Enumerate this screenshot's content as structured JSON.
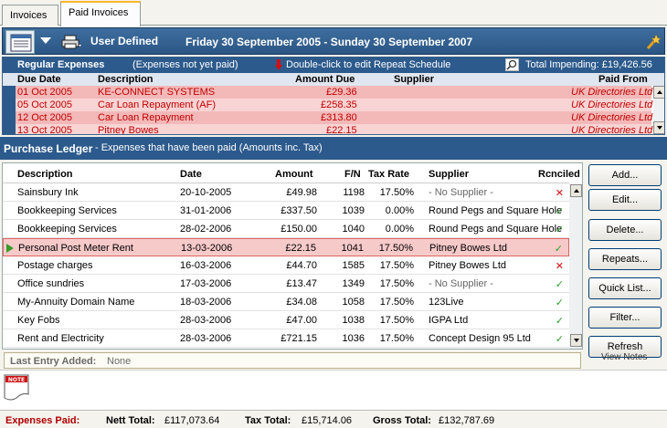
{
  "tabs": [
    {
      "label": "Invoices"
    },
    {
      "label": "Paid Invoices"
    }
  ],
  "toolbar": {
    "period_label": "User Defined",
    "date_range": "Friday 30 September 2005 - Sunday 30 September 2007"
  },
  "regular": {
    "title": "Regular Expenses",
    "subtitle": "(Expenses not yet paid)",
    "hint": "Double-click to edit Repeat Schedule",
    "total_impending": "Total Impending: £19,426.56",
    "columns": {
      "due_date": "Due Date",
      "description": "Description",
      "amount_due": "Amount Due",
      "supplier": "Supplier",
      "paid_from": "Paid From"
    },
    "rows": [
      {
        "due_date": "01 Oct 2005",
        "description": "KE-CONNECT SYSTEMS",
        "amount": "£29.36",
        "supplier": "",
        "paid_from": "UK Directories Ltd"
      },
      {
        "due_date": "05 Oct 2005",
        "description": "Car Loan Repayment (AF)",
        "amount": "£258.35",
        "supplier": "",
        "paid_from": "UK Directories Ltd"
      },
      {
        "due_date": "12 Oct 2005",
        "description": "Car Loan Repayment",
        "amount": "£313.80",
        "supplier": "",
        "paid_from": "UK Directories Ltd"
      },
      {
        "due_date": "13 Oct 2005",
        "description": "Pitney Bowes",
        "amount": "£22.15",
        "supplier": "",
        "paid_from": "UK Directories Ltd"
      }
    ]
  },
  "ledger": {
    "title": "Purchase Ledger",
    "subtitle": "- Expenses that have been paid  (Amounts inc. Tax)",
    "columns": {
      "description": "Description",
      "date": "Date",
      "amount": "Amount",
      "fn": "F/N",
      "tax_rate": "Tax Rate",
      "supplier": "Supplier",
      "reconciled": "Rcnciled"
    },
    "rows": [
      {
        "description": "Sainsbury Ink",
        "date": "20-10-2005",
        "amount": "£49.98",
        "fn": "1198",
        "tax_rate": "17.50%",
        "supplier": "- No Supplier -",
        "reconciled": "✕",
        "rec_state": "no"
      },
      {
        "description": "Bookkeeping Services",
        "date": "31-01-2006",
        "amount": "£337.50",
        "fn": "1039",
        "tax_rate": "0.00%",
        "supplier": "Round Pegs and Square Hole",
        "reconciled": "✓",
        "rec_state": "ok"
      },
      {
        "description": "Bookkeeping Services",
        "date": "28-02-2006",
        "amount": "£150.00",
        "fn": "1040",
        "tax_rate": "0.00%",
        "supplier": "Round Pegs and Square Hole",
        "reconciled": "✓",
        "rec_state": "ok"
      },
      {
        "description": "Personal Post Meter Rent",
        "date": "13-03-2006",
        "amount": "£22.15",
        "fn": "1041",
        "tax_rate": "17.50%",
        "supplier": "Pitney Bowes Ltd",
        "reconciled": "✓",
        "rec_state": "ok"
      },
      {
        "description": "Postage charges",
        "date": "16-03-2006",
        "amount": "£44.70",
        "fn": "1585",
        "tax_rate": "17.50%",
        "supplier": "Pitney Bowes Ltd",
        "reconciled": "✕",
        "rec_state": "no"
      },
      {
        "description": "Office sundries",
        "date": "17-03-2006",
        "amount": "£13.47",
        "fn": "1349",
        "tax_rate": "17.50%",
        "supplier": "- No Supplier -",
        "reconciled": "✓",
        "rec_state": "ok"
      },
      {
        "description": "My-Annuity Domain Name",
        "date": "18-03-2006",
        "amount": "£34.08",
        "fn": "1058",
        "tax_rate": "17.50%",
        "supplier": "123Live",
        "reconciled": "✓",
        "rec_state": "ok"
      },
      {
        "description": "Key Fobs",
        "date": "28-03-2006",
        "amount": "£47.00",
        "fn": "1038",
        "tax_rate": "17.50%",
        "supplier": "IGPA Ltd",
        "reconciled": "✓",
        "rec_state": "ok"
      },
      {
        "description": "Rent and Electricity",
        "date": "28-03-2006",
        "amount": "£721.15",
        "fn": "1036",
        "tax_rate": "17.50%",
        "supplier": "Concept Design 95 Ltd",
        "reconciled": "✓",
        "rec_state": "ok"
      }
    ],
    "selected_row": "Personal Post Meter Rent"
  },
  "buttons": {
    "add": "Add...",
    "edit": "Edit...",
    "delete": "Delete...",
    "repeats": "Repeats...",
    "quick_list": "Quick List...",
    "filter": "Filter...",
    "refresh": "Refresh",
    "view_notes": "View Notes"
  },
  "last_entry": {
    "label": "Last Entry Added:",
    "value": "None"
  },
  "note_icon_label": "NOTE",
  "footer": {
    "expenses_paid": "Expenses Paid:",
    "nett_label": "Nett Total:",
    "nett_value": "£117,073.64",
    "tax_label": "Tax Total:",
    "tax_value": "£15,714.06",
    "gross_label": "Gross Total:",
    "gross_value": "£132,787.69"
  },
  "colors": {
    "header_blue": "#2c5a8c",
    "regular_row_red": "#f3b8b8",
    "regular_text_red": "#c00000",
    "reconciled_green": "#2a9a2a",
    "unreconciled_red": "#d01010"
  }
}
